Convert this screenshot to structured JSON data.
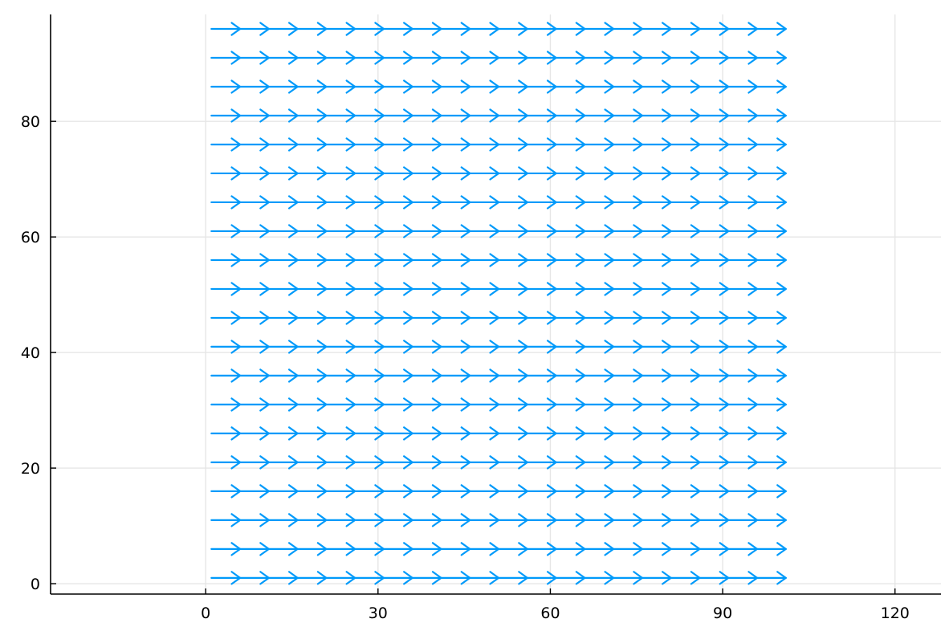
{
  "chart_data": {
    "type": "quiver",
    "title": "",
    "xlabel": "",
    "ylabel": "",
    "xlim": [
      -27,
      128
    ],
    "ylim": [
      -1.8,
      98.5
    ],
    "xticks": [
      0,
      30,
      60,
      90,
      120
    ],
    "yticks": [
      0,
      20,
      40,
      60,
      80
    ],
    "xtick_labels": [
      "0",
      "30",
      "60",
      "90",
      "120"
    ],
    "ytick_labels": [
      "0",
      "20",
      "40",
      "60",
      "80"
    ],
    "grid": true,
    "legend": "none",
    "colors": {
      "arrow": "#009AFA",
      "grid": "#E6E6E6",
      "axis": "#000000"
    },
    "arrow_origins_x": [
      1,
      6,
      11,
      16,
      21,
      26,
      31,
      36,
      41,
      46,
      51,
      56,
      61,
      66,
      71,
      76,
      81,
      86,
      91,
      96
    ],
    "arrow_origins_y": [
      1,
      6,
      11,
      16,
      21,
      26,
      31,
      36,
      41,
      46,
      51,
      56,
      61,
      66,
      71,
      76,
      81,
      86,
      91,
      96
    ],
    "arrow_vector": {
      "u": 5,
      "v": 0
    }
  }
}
